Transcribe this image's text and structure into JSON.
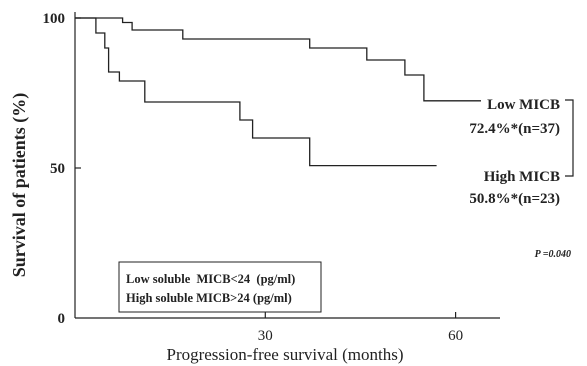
{
  "chart_data": {
    "type": "line",
    "chart_subtype": "kaplan-meier step",
    "xlabel": "Progression-free survival (months)",
    "ylabel": "Survival of patients (%)",
    "xlim": [
      0,
      67
    ],
    "ylim": [
      0,
      102
    ],
    "x_ticks": [
      30,
      60
    ],
    "y_ticks": [
      0,
      50,
      100
    ],
    "grid": false,
    "series": [
      {
        "name": "Low MICB",
        "color": "#222222",
        "steps": [
          [
            0,
            100
          ],
          [
            7.5,
            100
          ],
          [
            7.5,
            98.5
          ],
          [
            9,
            98.5
          ],
          [
            9,
            96
          ],
          [
            17,
            96
          ],
          [
            17,
            93
          ],
          [
            37,
            93
          ],
          [
            37,
            90
          ],
          [
            46,
            90
          ],
          [
            46,
            86
          ],
          [
            52,
            86
          ],
          [
            52,
            81
          ],
          [
            55,
            81
          ],
          [
            55,
            72.4
          ],
          [
            64,
            72.4
          ]
        ]
      },
      {
        "name": "High MICB",
        "color": "#222222",
        "steps": [
          [
            0,
            100
          ],
          [
            3.3,
            100
          ],
          [
            3.3,
            95
          ],
          [
            4.7,
            95
          ],
          [
            4.7,
            90
          ],
          [
            5.3,
            90
          ],
          [
            5.3,
            82
          ],
          [
            7,
            82
          ],
          [
            7,
            79
          ],
          [
            11,
            79
          ],
          [
            11,
            72
          ],
          [
            26,
            72
          ],
          [
            26,
            66
          ],
          [
            28,
            66
          ],
          [
            28,
            60
          ],
          [
            37,
            60
          ],
          [
            37,
            50.8
          ],
          [
            57,
            50.8
          ]
        ]
      }
    ],
    "annotations": {
      "low_label": "Low MICB",
      "low_value": "72.4%*(n=37)",
      "high_label": "High MICB",
      "high_value": "50.8%*(n=23)",
      "p_value": "P =0.040"
    },
    "legend_box": {
      "line1": "Low soluble  MICB<24  (pg/ml)",
      "line2": "High soluble MICB>24 (pg/ml)"
    }
  }
}
